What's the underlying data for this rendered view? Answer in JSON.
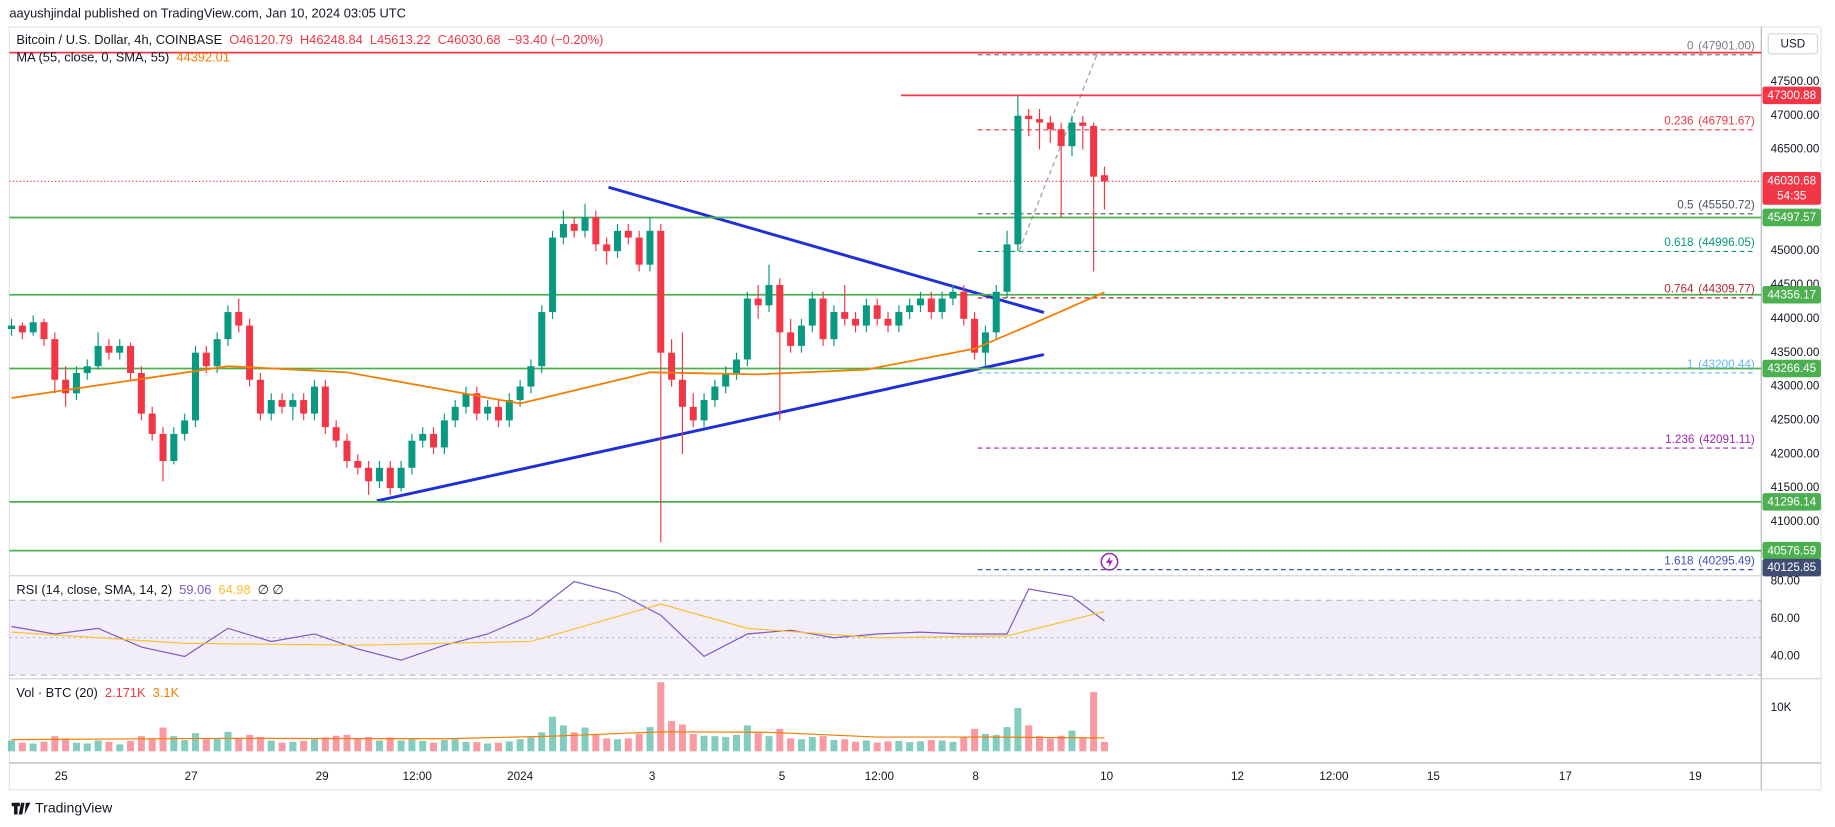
{
  "header": {
    "publisher": "aayushjindal published on TradingView.com, Jan 10, 2024 03:05 UTC",
    "brand": "TradingView"
  },
  "chart_data": [
    {
      "type": "candlestick",
      "symbol": "Bitcoin / U.S. Dollar, 4h, COINBASE",
      "ohlc_text": {
        "open": "O46120.79",
        "high": "H46248.84",
        "low": "L45613.22",
        "close": "C46030.68",
        "change": "−93.40 (−0.20%)"
      },
      "currency": "USD",
      "up_color": "#089981",
      "down_color": "#f23645",
      "candles": [
        [
          43850,
          44000,
          43750,
          43900
        ],
        [
          43900,
          43950,
          43700,
          43800
        ],
        [
          43800,
          44050,
          43750,
          43950
        ],
        [
          43950,
          44000,
          43600,
          43700
        ],
        [
          43700,
          43800,
          42900,
          43100
        ],
        [
          43100,
          43300,
          42700,
          42900
        ],
        [
          42900,
          43300,
          42800,
          43200
        ],
        [
          43200,
          43400,
          43100,
          43300
        ],
        [
          43300,
          43800,
          43250,
          43600
        ],
        [
          43600,
          43700,
          43400,
          43500
        ],
        [
          43500,
          43700,
          43400,
          43600
        ],
        [
          43600,
          43650,
          43100,
          43200
        ],
        [
          43200,
          43300,
          42500,
          42600
        ],
        [
          42600,
          42700,
          42200,
          42300
        ],
        [
          42300,
          42400,
          41600,
          41900
        ],
        [
          41900,
          42400,
          41850,
          42300
        ],
        [
          42300,
          42600,
          42200,
          42500
        ],
        [
          42500,
          43600,
          42400,
          43500
        ],
        [
          43500,
          43600,
          43200,
          43300
        ],
        [
          43300,
          43800,
          43200,
          43700
        ],
        [
          43700,
          44200,
          43600,
          44100
        ],
        [
          44100,
          44300,
          43800,
          43900
        ],
        [
          43900,
          44000,
          43000,
          43100
        ],
        [
          43100,
          43200,
          42500,
          42600
        ],
        [
          42600,
          42900,
          42500,
          42800
        ],
        [
          42800,
          42900,
          42600,
          42700
        ],
        [
          42700,
          42900,
          42500,
          42800
        ],
        [
          42800,
          42900,
          42500,
          42600
        ],
        [
          42600,
          43100,
          42500,
          43000
        ],
        [
          43000,
          43100,
          42300,
          42400
        ],
        [
          42400,
          42500,
          42100,
          42200
        ],
        [
          42200,
          42300,
          41800,
          41900
        ],
        [
          41900,
          42000,
          41700,
          41800
        ],
        [
          41800,
          41900,
          41400,
          41600
        ],
        [
          41600,
          41900,
          41500,
          41800
        ],
        [
          41800,
          41900,
          41400,
          41500
        ],
        [
          41500,
          41900,
          41450,
          41800
        ],
        [
          41800,
          42300,
          41700,
          42200
        ],
        [
          42200,
          42400,
          42100,
          42300
        ],
        [
          42300,
          42400,
          42000,
          42100
        ],
        [
          42100,
          42600,
          42000,
          42500
        ],
        [
          42500,
          42800,
          42400,
          42700
        ],
        [
          42700,
          43000,
          42600,
          42900
        ],
        [
          42900,
          43000,
          42500,
          42600
        ],
        [
          42600,
          42800,
          42500,
          42700
        ],
        [
          42700,
          42800,
          42400,
          42500
        ],
        [
          42500,
          42900,
          42400,
          42800
        ],
        [
          42800,
          43100,
          42700,
          43000
        ],
        [
          43000,
          43400,
          42900,
          43300
        ],
        [
          43300,
          44200,
          43200,
          44100
        ],
        [
          44100,
          45300,
          44000,
          45200
        ],
        [
          45200,
          45600,
          45100,
          45400
        ],
        [
          45400,
          45500,
          45200,
          45300
        ],
        [
          45300,
          45700,
          45200,
          45500
        ],
        [
          45500,
          45600,
          45000,
          45100
        ],
        [
          45100,
          45200,
          44800,
          45000
        ],
        [
          45000,
          45400,
          44900,
          45300
        ],
        [
          45300,
          45400,
          45100,
          45200
        ],
        [
          45200,
          45300,
          44700,
          44800
        ],
        [
          44800,
          45500,
          44700,
          45300
        ],
        [
          45300,
          45400,
          40700,
          43500
        ],
        [
          43500,
          43700,
          43000,
          43100
        ],
        [
          43100,
          43800,
          42000,
          42700
        ],
        [
          42700,
          42900,
          42400,
          42500
        ],
        [
          42500,
          42900,
          42400,
          42800
        ],
        [
          42800,
          43100,
          42700,
          43000
        ],
        [
          43000,
          43300,
          42900,
          43200
        ],
        [
          43200,
          43500,
          43100,
          43400
        ],
        [
          43400,
          44400,
          43300,
          44300
        ],
        [
          44300,
          44500,
          44000,
          44200
        ],
        [
          44200,
          44800,
          44100,
          44500
        ],
        [
          44500,
          44600,
          42500,
          43800
        ],
        [
          43800,
          44000,
          43500,
          43600
        ],
        [
          43600,
          44000,
          43500,
          43900
        ],
        [
          43900,
          44400,
          43800,
          44300
        ],
        [
          44300,
          44400,
          43600,
          43700
        ],
        [
          43700,
          44200,
          43600,
          44100
        ],
        [
          44100,
          44500,
          43900,
          44000
        ],
        [
          44000,
          44100,
          43800,
          43900
        ],
        [
          43900,
          44300,
          43800,
          44200
        ],
        [
          44200,
          44300,
          43900,
          44000
        ],
        [
          44000,
          44100,
          43800,
          43900
        ],
        [
          43900,
          44200,
          43800,
          44100
        ],
        [
          44100,
          44300,
          44000,
          44200
        ],
        [
          44200,
          44400,
          44100,
          44300
        ],
        [
          44300,
          44400,
          44000,
          44100
        ],
        [
          44100,
          44400,
          44000,
          44300
        ],
        [
          44300,
          44500,
          44200,
          44400
        ],
        [
          44400,
          44500,
          43900,
          44000
        ],
        [
          44000,
          44100,
          43400,
          43500
        ],
        [
          43500,
          43900,
          43300,
          43800
        ],
        [
          43800,
          44500,
          43700,
          44400
        ],
        [
          44400,
          45300,
          44300,
          45100
        ],
        [
          45100,
          47300,
          45000,
          47000
        ],
        [
          47000,
          47100,
          46700,
          46950
        ],
        [
          46950,
          47100,
          46500,
          46900
        ],
        [
          46900,
          47000,
          46600,
          46800
        ],
        [
          46800,
          46900,
          45500,
          46550
        ],
        [
          46550,
          47000,
          46400,
          46900
        ],
        [
          46900,
          47000,
          46500,
          46850
        ],
        [
          46850,
          46900,
          44700,
          46100
        ],
        [
          46121,
          46249,
          45613,
          46031
        ]
      ],
      "xlim": [
        -0.2,
        161.7
      ],
      "xticks": [
        {
          "value": 4.6,
          "label": "25"
        },
        {
          "value": 16.6,
          "label": "27"
        },
        {
          "value": 28.7,
          "label": "29"
        },
        {
          "value": 37.5,
          "label": "12:00"
        },
        {
          "value": 47,
          "label": "2024"
        },
        {
          "value": 59.2,
          "label": "3"
        },
        {
          "value": 71.2,
          "label": "5"
        },
        {
          "value": 80.2,
          "label": "12:00"
        },
        {
          "value": 89.1,
          "label": "8"
        },
        {
          "value": 101.2,
          "label": "10"
        },
        {
          "value": 113.3,
          "label": "12"
        },
        {
          "value": 122.2,
          "label": "12:00"
        },
        {
          "value": 131.4,
          "label": "15"
        },
        {
          "value": 143.6,
          "label": "17"
        },
        {
          "value": 155.6,
          "label": "19"
        }
      ],
      "ylim": [
        40205,
        48312
      ],
      "yticks": [
        {
          "value": 47500,
          "label": "47500.00"
        },
        {
          "value": 47000,
          "label": "47000.00"
        },
        {
          "value": 46500,
          "label": "46500.00"
        },
        {
          "value": 46000,
          "label": "46000.00"
        },
        {
          "value": 45500,
          "label": "45500.00"
        },
        {
          "value": 45000,
          "label": "45000.00"
        },
        {
          "value": 44500,
          "label": "44500.00"
        },
        {
          "value": 44000,
          "label": "44000.00"
        },
        {
          "value": 43500,
          "label": "43500.00"
        },
        {
          "value": 43000,
          "label": "43000.00"
        },
        {
          "value": 42500,
          "label": "42500.00"
        },
        {
          "value": 42000,
          "label": "42000.00"
        },
        {
          "value": 41500,
          "label": "41500.00"
        },
        {
          "value": 41000,
          "label": "41000.00"
        }
      ],
      "ma": {
        "name": "MA (55, close, 0, SMA, 55)",
        "last": 44392.01,
        "color": "#f57c00",
        "x": [
          0,
          20,
          31,
          47,
          59,
          69,
          79,
          89,
          94,
          101
        ],
        "values": [
          42830,
          43300,
          43210,
          42750,
          43210,
          43180,
          43250,
          43560,
          43900,
          44392
        ]
      },
      "levels": [
        {
          "value": 47932,
          "color": "#f23645"
        },
        {
          "value": 47300.88,
          "color": "#f23645",
          "from": 82.2
        },
        {
          "value": 45497.57,
          "color": "#4caf50"
        },
        {
          "value": 44356.17,
          "color": "#4caf50"
        },
        {
          "value": 43266.45,
          "color": "#4caf50"
        },
        {
          "value": 41296.14,
          "color": "#4caf50"
        },
        {
          "value": 40576.59,
          "color": "#4caf50"
        }
      ],
      "axis_labels": [
        {
          "value": 47300.88,
          "color": "#f23645"
        },
        {
          "value": 45497.57,
          "color": "#4caf50"
        },
        {
          "value": 44356.17,
          "color": "#4caf50"
        },
        {
          "value": 43266.45,
          "color": "#4caf50"
        },
        {
          "value": 41296.14,
          "color": "#4caf50"
        },
        {
          "value": 40576.59,
          "color": "#4caf50"
        },
        {
          "value": 40125.85,
          "color": "#3f4d73"
        }
      ],
      "last_price": {
        "value": 46030.68,
        "countdown": "54:35",
        "color": "#f23645"
      },
      "fib": {
        "x_range": [
          89.3,
          161.1
        ],
        "levels": [
          {
            "ratio": 0,
            "price": {
              "value": 47901,
              "label": "(47901.00)"
            },
            "color": "#787b86"
          },
          {
            "ratio": 0.236,
            "price": {
              "value": 46791.67,
              "label": "(46791.67)"
            },
            "color": "#f23645"
          },
          {
            "ratio": 0.5,
            "price": {
              "value": 45550.72,
              "label": "(45550.72)"
            },
            "color": "#4c525e"
          },
          {
            "ratio": 0.618,
            "price": {
              "value": 44996.05,
              "label": "(44996.05)"
            },
            "color": "#089981"
          },
          {
            "ratio": 0.764,
            "price": {
              "value": 44309.77,
              "label": "(44309.77)"
            },
            "color": "#b22833"
          },
          {
            "ratio": 1,
            "price": {
              "value": 43200.44,
              "label": "(43200.44)"
            },
            "color": "#64b5f6"
          },
          {
            "ratio": 1.236,
            "price": {
              "value": 42091.11,
              "label": "(42091.11)"
            },
            "color": "#9c27b0"
          },
          {
            "ratio": 1.618,
            "price": {
              "value": 40295.49,
              "label": "(40295.49)"
            },
            "color": "#3f51b5"
          }
        ]
      }
    },
    {
      "type": "line",
      "title": "RSI (14, close, SMA, 14, 2)",
      "na_text": "∅ ∅",
      "ylim": [
        28.1,
        83.1
      ],
      "yticks": [
        {
          "value": 80,
          "label": "80.00"
        },
        {
          "value": 60,
          "label": "60.00"
        },
        {
          "value": 40,
          "label": "40.00"
        }
      ],
      "band": [
        30,
        70
      ],
      "midline": 50,
      "band_color": "#7e57c2",
      "series": [
        {
          "color": "#7e57c2",
          "last": 59.06,
          "x": [
            0,
            4,
            8,
            12,
            16,
            20,
            24,
            28,
            32,
            36,
            40,
            44,
            48,
            52,
            56,
            60,
            64,
            68,
            72,
            76,
            80,
            84,
            88,
            92,
            94,
            98,
            101
          ],
          "values": [
            56,
            52,
            55,
            45,
            40,
            55,
            48,
            52,
            44,
            38,
            46,
            52,
            62,
            80,
            74,
            62,
            40,
            52,
            54,
            50,
            52,
            53,
            52,
            52,
            76,
            72,
            59
          ]
        },
        {
          "color": "#fbc02d",
          "last": 64.98,
          "x": [
            0,
            16,
            32,
            48,
            60,
            68,
            80,
            92,
            101
          ],
          "values": [
            53,
            47,
            46,
            48,
            68,
            55,
            50,
            51,
            64
          ]
        }
      ]
    },
    {
      "type": "bar",
      "title": "Vol · BTC (20)",
      "last": {
        "value": 2171,
        "label": "2.171K"
      },
      "ylim": [
        0,
        16800
      ],
      "yticks": [
        {
          "value": 10000,
          "label": "10K"
        }
      ],
      "values": [
        2500,
        2000,
        1800,
        2200,
        3500,
        3000,
        2000,
        1800,
        2500,
        2200,
        1600,
        2400,
        3500,
        3000,
        5500,
        3500,
        2600,
        4200,
        2800,
        3000,
        4500,
        3000,
        3800,
        3300,
        2500,
        2000,
        2200,
        2400,
        2800,
        3200,
        3600,
        3800,
        3000,
        3300,
        2500,
        3200,
        2500,
        2800,
        2400,
        2000,
        2600,
        2800,
        2200,
        2100,
        1800,
        2000,
        2300,
        2800,
        3200,
        4400,
        8000,
        6000,
        4400,
        5500,
        3800,
        3000,
        2800,
        3000,
        4000,
        5600,
        16000,
        7000,
        6200,
        4000,
        3600,
        3500,
        3300,
        3800,
        6000,
        4200,
        3500,
        5200,
        3000,
        2800,
        3300,
        3500,
        2600,
        2800,
        2200,
        2500,
        2000,
        2300,
        2400,
        2100,
        2300,
        2600,
        2500,
        2200,
        3200,
        5200,
        4000,
        3800,
        5600,
        10000,
        6000,
        3500,
        3000,
        3600,
        4800,
        3000,
        13700,
        2171
      ],
      "ma": {
        "color": "#f57c00",
        "last": {
          "value": 3100,
          "label": "3.1K"
        },
        "x": [
          0,
          20,
          40,
          50,
          60,
          70,
          80,
          90,
          101
        ],
        "values": [
          2700,
          3000,
          2900,
          3500,
          4500,
          4400,
          3300,
          3300,
          3100
        ]
      }
    }
  ]
}
